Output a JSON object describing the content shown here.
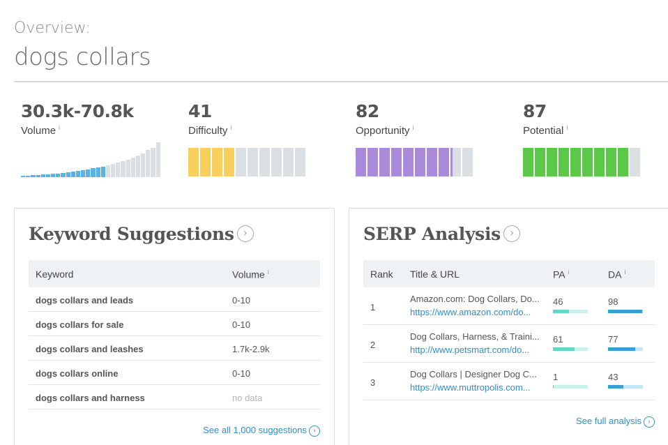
{
  "header": {
    "overview_label": "Overview:",
    "keyword": "dogs collars"
  },
  "metrics": {
    "volume": {
      "value": "30.3k-70.8k",
      "label": "Volume",
      "info": "i"
    },
    "difficulty": {
      "value": "41",
      "label": "Difficulty",
      "info": "i",
      "filled_segments": 4,
      "total_segments": 10,
      "color": "#f7cf5b"
    },
    "opportunity": {
      "value": "82",
      "label": "Opportunity",
      "info": "i",
      "filled_segments": 8.2,
      "total_segments": 10,
      "color": "#a98bd9"
    },
    "potential": {
      "value": "87",
      "label": "Potential",
      "info": "i",
      "filled_segments": 9,
      "total_segments": 10,
      "color": "#5cc84a"
    }
  },
  "volume_chart": {
    "highlight_color": "#59b3e3",
    "muted_color": "#d9dfe2",
    "highlighted_count": 17,
    "relative_levels": [
      2,
      2,
      3,
      3,
      4,
      4,
      5,
      5,
      6,
      7,
      8,
      9,
      10,
      11,
      12,
      13,
      14,
      16,
      18,
      20,
      22,
      24,
      27,
      30,
      33,
      37,
      40,
      48
    ]
  },
  "keyword_suggestions": {
    "title": "Keyword Suggestions",
    "columns": {
      "keyword": "Keyword",
      "volume": "Volume",
      "volume_info": "i"
    },
    "rows": [
      {
        "keyword": "dogs collars and leads",
        "volume": "0-10"
      },
      {
        "keyword": "dogs collars for sale",
        "volume": "0-10"
      },
      {
        "keyword": "dogs collars and leashes",
        "volume": "1.7k-2.9k"
      },
      {
        "keyword": "dogs collars online",
        "volume": "0-10"
      },
      {
        "keyword": "dogs collars and harness",
        "volume": "no data"
      }
    ],
    "see_all": "See all 1,000 suggestions"
  },
  "serp_analysis": {
    "title": "SERP Analysis",
    "columns": {
      "rank": "Rank",
      "title_url": "Title & URL",
      "pa": "PA",
      "da": "DA",
      "info": "i"
    },
    "pa_color": "#5fd8c6",
    "pa_track": "#c9f1ea",
    "da_color": "#3a9fd6",
    "da_track": "#c2e7f8",
    "rows": [
      {
        "rank": "1",
        "title": "Amazon.com: Dog Collars, Do...",
        "url": "https://www.amazon.com/do...",
        "pa": "46",
        "da": "98",
        "pa_level": 0.46,
        "da_level": 0.98
      },
      {
        "rank": "2",
        "title": "Dog Collars, Harness, & Traini...",
        "url": "http://www.petsmart.com/do...",
        "pa": "61",
        "da": "77",
        "pa_level": 0.61,
        "da_level": 0.77
      },
      {
        "rank": "3",
        "title": "Dog Collars | Designer Dog C...",
        "url": "https://www.muttropolis.com...",
        "pa": "1",
        "da": "43",
        "pa_level": 0.01,
        "da_level": 0.43
      }
    ],
    "see_full": "See full analysis"
  }
}
